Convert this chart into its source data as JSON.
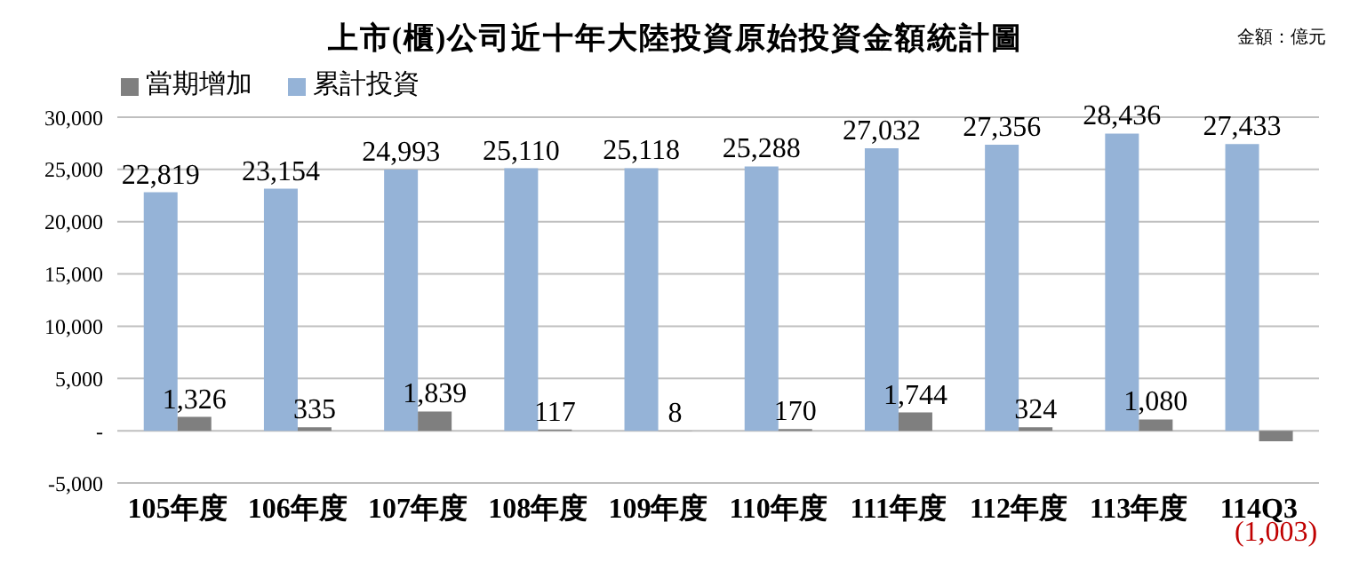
{
  "chart_data": {
    "type": "bar",
    "title": "上市(櫃)公司近十年大陸投資原始投資金額統計圖",
    "annotations": [
      "金額：億元"
    ],
    "categories": [
      "105年度",
      "106年度",
      "107年度",
      "108年度",
      "109年度",
      "110年度",
      "111年度",
      "112年度",
      "113年度",
      "114Q3"
    ],
    "series": [
      {
        "name": "累計投資",
        "color": "#95b3d7",
        "values": [
          22819,
          23154,
          24993,
          25110,
          25118,
          25288,
          27032,
          27356,
          28436,
          27433
        ],
        "value_labels": [
          "22,819",
          "23,154",
          "24,993",
          "25,110",
          "25,118",
          "25,288",
          "27,032",
          "27,356",
          "28,436",
          "27,433"
        ]
      },
      {
        "name": "當期增加",
        "color": "#7f7f7f",
        "values": [
          1326,
          335,
          1839,
          117,
          8,
          170,
          1744,
          324,
          1080,
          -1003
        ],
        "value_labels": [
          "1,326",
          "335",
          "1,839",
          "117",
          "8",
          "170",
          "1,744",
          "324",
          "1,080",
          "(1,003)"
        ]
      }
    ],
    "ylim": [
      -5000,
      30000
    ],
    "yticks": [
      {
        "value": -5000,
        "label": "-5,000"
      },
      {
        "value": 0,
        "label": "-"
      },
      {
        "value": 5000,
        "label": "5,000"
      },
      {
        "value": 10000,
        "label": "10,000"
      },
      {
        "value": 15000,
        "label": "15,000"
      },
      {
        "value": 20000,
        "label": "20,000"
      },
      {
        "value": 25000,
        "label": "25,000"
      },
      {
        "value": 30000,
        "label": "30,000"
      }
    ],
    "grid": "y",
    "legend": "top left"
  }
}
